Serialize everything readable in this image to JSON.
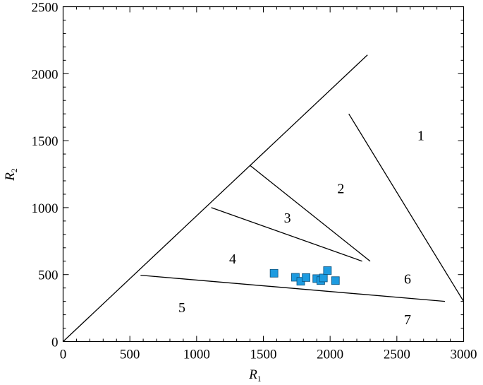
{
  "chart_data": {
    "type": "scatter",
    "title": "",
    "xlabel": "R",
    "xlabel_sub": "1",
    "ylabel": "R",
    "ylabel_sub": "2",
    "xlim": [
      0,
      3000
    ],
    "ylim": [
      0,
      2500
    ],
    "xticks": [
      0,
      500,
      1000,
      1500,
      2000,
      2500,
      3000
    ],
    "yticks": [
      0,
      500,
      1000,
      1500,
      2000,
      2500
    ],
    "xtick_labels": [
      "0",
      "500",
      "1000",
      "1500",
      "2000",
      "2500",
      "3000"
    ],
    "ytick_labels": [
      "0",
      "500",
      "1000",
      "1500",
      "2000",
      "2500"
    ],
    "grid": false,
    "legend": "none",
    "marker_color": "#1d9be0",
    "points": [
      {
        "x": 1580,
        "y": 510
      },
      {
        "x": 1740,
        "y": 480
      },
      {
        "x": 1780,
        "y": 450
      },
      {
        "x": 1820,
        "y": 478
      },
      {
        "x": 1900,
        "y": 470
      },
      {
        "x": 1930,
        "y": 455
      },
      {
        "x": 1950,
        "y": 475
      },
      {
        "x": 1980,
        "y": 530
      },
      {
        "x": 2040,
        "y": 455
      }
    ],
    "boundaries": [
      {
        "x1": 0,
        "y1": 0,
        "x2": 2280,
        "y2": 2140
      },
      {
        "x1": 2140,
        "y1": 1700,
        "x2": 3000,
        "y2": 300
      },
      {
        "x1": 1400,
        "y1": 1315,
        "x2": 2300,
        "y2": 600
      },
      {
        "x1": 1110,
        "y1": 1000,
        "x2": 2240,
        "y2": 600
      },
      {
        "x1": 580,
        "y1": 495,
        "x2": 2860,
        "y2": 300
      }
    ],
    "regions": [
      {
        "label": "1",
        "x": 2680,
        "y": 1540
      },
      {
        "label": "2",
        "x": 2080,
        "y": 1145
      },
      {
        "label": "3",
        "x": 1680,
        "y": 925
      },
      {
        "label": "4",
        "x": 1270,
        "y": 620
      },
      {
        "label": "5",
        "x": 890,
        "y": 255
      },
      {
        "label": "6",
        "x": 2580,
        "y": 470
      },
      {
        "label": "7",
        "x": 2580,
        "y": 165
      }
    ]
  }
}
